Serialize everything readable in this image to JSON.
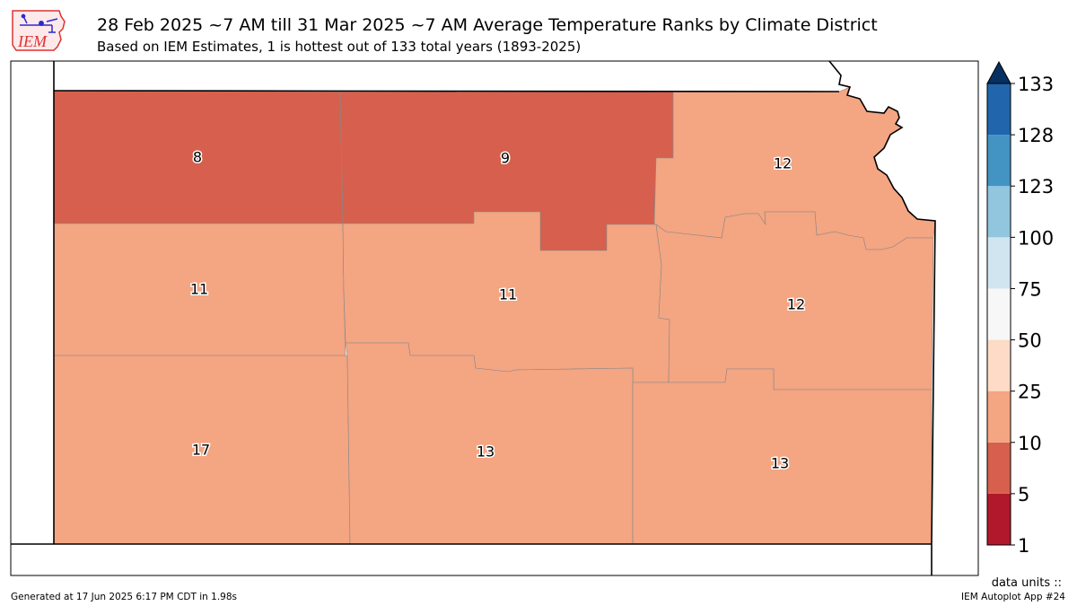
{
  "header": {
    "logo_text": "IEM",
    "title": "28 Feb 2025 ~7 AM till 31 Mar 2025 ~7 AM Average Temperature Ranks by Climate District",
    "subtitle": "Based on IEM Estimates, 1 is hottest out of 133 total years (1893-2025)"
  },
  "map": {
    "state": "Kansas",
    "districts": [
      {
        "id": "northwest",
        "rank": "8",
        "color": "#d6604d"
      },
      {
        "id": "north-central",
        "rank": "9",
        "color": "#d6604d"
      },
      {
        "id": "northeast",
        "rank": "12",
        "color": "#f4a582"
      },
      {
        "id": "west-central",
        "rank": "11",
        "color": "#f4a582"
      },
      {
        "id": "central",
        "rank": "11",
        "color": "#f4a582"
      },
      {
        "id": "east-central",
        "rank": "12",
        "color": "#f4a582"
      },
      {
        "id": "southwest",
        "rank": "17",
        "color": "#f4a582"
      },
      {
        "id": "south-central",
        "rank": "13",
        "color": "#f4a582"
      },
      {
        "id": "southeast",
        "rank": "13",
        "color": "#f4a582"
      }
    ]
  },
  "colorbar": {
    "ticks": [
      "1",
      "5",
      "10",
      "25",
      "50",
      "75",
      "100",
      "123",
      "128",
      "133"
    ],
    "colors": [
      "#b2182b",
      "#d6604d",
      "#f4a582",
      "#fddbc7",
      "#f7f7f7",
      "#d1e5f0",
      "#92c5de",
      "#4393c3",
      "#2166ac",
      "#053061"
    ]
  },
  "footer": {
    "generated": "Generated at 17 Jun 2025 6:17 PM CDT in 1.98s",
    "units": "data units ::",
    "app": "IEM Autoplot App #24"
  }
}
